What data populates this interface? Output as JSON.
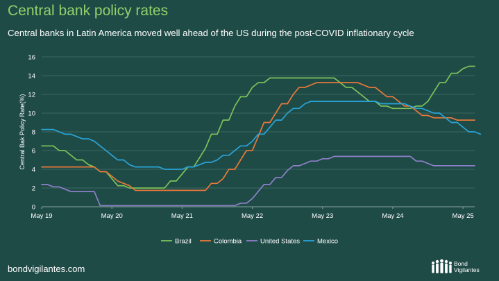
{
  "title": "Central bank policy rates",
  "subtitle": "Central banks in Latin America moved well ahead of the US during the post-COVID inflationary cycle",
  "footer": "bondvigilantes.com",
  "brand": {
    "line1": "Bond",
    "line2": "Vigilantes"
  },
  "chart_data": {
    "type": "line",
    "ylabel": "Central Bak Policy Rate(%)",
    "ylim": [
      0,
      16
    ],
    "yticks": [
      0,
      2,
      4,
      6,
      8,
      10,
      12,
      14,
      16
    ],
    "xlim": [
      "2019-05",
      "2025-07"
    ],
    "xticks": [
      "May 19",
      "May 20",
      "May 21",
      "May 22",
      "May 23",
      "May 24",
      "May 25"
    ],
    "grid": "horizontal",
    "legend": "bottom-center",
    "series": [
      {
        "name": "Brazil",
        "color": "#7cc35a",
        "points": [
          [
            "2019-05",
            6.5
          ],
          [
            "2019-06",
            6.5
          ],
          [
            "2019-07",
            6.5
          ],
          [
            "2019-08",
            6.0
          ],
          [
            "2019-09",
            6.0
          ],
          [
            "2019-10",
            5.5
          ],
          [
            "2019-11",
            5.0
          ],
          [
            "2019-12",
            5.0
          ],
          [
            "2020-01",
            4.5
          ],
          [
            "2020-02",
            4.25
          ],
          [
            "2020-03",
            3.75
          ],
          [
            "2020-04",
            3.75
          ],
          [
            "2020-05",
            3.0
          ],
          [
            "2020-06",
            2.25
          ],
          [
            "2020-07",
            2.25
          ],
          [
            "2020-08",
            2.0
          ],
          [
            "2020-12",
            2.0
          ],
          [
            "2021-01",
            2.0
          ],
          [
            "2021-02",
            2.0
          ],
          [
            "2021-03",
            2.75
          ],
          [
            "2021-04",
            2.75
          ],
          [
            "2021-05",
            3.5
          ],
          [
            "2021-06",
            4.25
          ],
          [
            "2021-07",
            4.25
          ],
          [
            "2021-08",
            5.25
          ],
          [
            "2021-09",
            6.25
          ],
          [
            "2021-10",
            7.75
          ],
          [
            "2021-11",
            7.75
          ],
          [
            "2021-12",
            9.25
          ],
          [
            "2022-01",
            9.25
          ],
          [
            "2022-02",
            10.75
          ],
          [
            "2022-03",
            11.75
          ],
          [
            "2022-04",
            11.75
          ],
          [
            "2022-05",
            12.75
          ],
          [
            "2022-06",
            13.25
          ],
          [
            "2022-07",
            13.25
          ],
          [
            "2022-08",
            13.75
          ],
          [
            "2023-07",
            13.75
          ],
          [
            "2023-08",
            13.25
          ],
          [
            "2023-09",
            12.75
          ],
          [
            "2023-10",
            12.75
          ],
          [
            "2023-11",
            12.25
          ],
          [
            "2023-12",
            11.75
          ],
          [
            "2024-01",
            11.25
          ],
          [
            "2024-02",
            11.25
          ],
          [
            "2024-03",
            10.75
          ],
          [
            "2024-04",
            10.75
          ],
          [
            "2024-05",
            10.5
          ],
          [
            "2024-08",
            10.5
          ],
          [
            "2024-09",
            10.75
          ],
          [
            "2024-10",
            10.75
          ],
          [
            "2024-11",
            11.25
          ],
          [
            "2024-12",
            12.25
          ],
          [
            "2025-01",
            13.25
          ],
          [
            "2025-02",
            13.25
          ],
          [
            "2025-03",
            14.25
          ],
          [
            "2025-04",
            14.25
          ],
          [
            "2025-05",
            14.75
          ],
          [
            "2025-06",
            15.0
          ],
          [
            "2025-07",
            15.0
          ]
        ]
      },
      {
        "name": "Colombia",
        "color": "#e8793a",
        "points": [
          [
            "2019-05",
            4.25
          ],
          [
            "2020-02",
            4.25
          ],
          [
            "2020-03",
            3.75
          ],
          [
            "2020-04",
            3.75
          ],
          [
            "2020-05",
            3.25
          ],
          [
            "2020-06",
            2.75
          ],
          [
            "2020-07",
            2.5
          ],
          [
            "2020-08",
            2.25
          ],
          [
            "2020-09",
            1.75
          ],
          [
            "2021-08",
            1.75
          ],
          [
            "2021-09",
            1.75
          ],
          [
            "2021-10",
            2.5
          ],
          [
            "2021-11",
            2.5
          ],
          [
            "2021-12",
            3.0
          ],
          [
            "2022-01",
            4.0
          ],
          [
            "2022-02",
            4.0
          ],
          [
            "2022-03",
            5.0
          ],
          [
            "2022-04",
            6.0
          ],
          [
            "2022-05",
            6.0
          ],
          [
            "2022-06",
            7.5
          ],
          [
            "2022-07",
            9.0
          ],
          [
            "2022-08",
            9.0
          ],
          [
            "2022-09",
            10.0
          ],
          [
            "2022-10",
            11.0
          ],
          [
            "2022-11",
            11.0
          ],
          [
            "2022-12",
            12.0
          ],
          [
            "2023-01",
            12.75
          ],
          [
            "2023-02",
            12.75
          ],
          [
            "2023-03",
            13.0
          ],
          [
            "2023-04",
            13.25
          ],
          [
            "2023-11",
            13.25
          ],
          [
            "2023-12",
            13.0
          ],
          [
            "2024-01",
            12.75
          ],
          [
            "2024-02",
            12.75
          ],
          [
            "2024-03",
            12.25
          ],
          [
            "2024-04",
            11.75
          ],
          [
            "2024-05",
            11.75
          ],
          [
            "2024-06",
            11.25
          ],
          [
            "2024-07",
            10.75
          ],
          [
            "2024-08",
            10.75
          ],
          [
            "2024-09",
            10.25
          ],
          [
            "2024-10",
            9.75
          ],
          [
            "2024-11",
            9.75
          ],
          [
            "2024-12",
            9.5
          ],
          [
            "2025-03",
            9.5
          ],
          [
            "2025-04",
            9.25
          ],
          [
            "2025-07",
            9.25
          ]
        ]
      },
      {
        "name": "United States",
        "color": "#8c7fc8",
        "points": [
          [
            "2019-05",
            2.375
          ],
          [
            "2019-06",
            2.375
          ],
          [
            "2019-07",
            2.125
          ],
          [
            "2019-08",
            2.125
          ],
          [
            "2019-09",
            1.875
          ],
          [
            "2019-10",
            1.625
          ],
          [
            "2020-02",
            1.625
          ],
          [
            "2020-03",
            0.125
          ],
          [
            "2022-02",
            0.125
          ],
          [
            "2022-03",
            0.375
          ],
          [
            "2022-04",
            0.375
          ],
          [
            "2022-05",
            0.875
          ],
          [
            "2022-06",
            1.625
          ],
          [
            "2022-07",
            2.375
          ],
          [
            "2022-08",
            2.375
          ],
          [
            "2022-09",
            3.125
          ],
          [
            "2022-10",
            3.125
          ],
          [
            "2022-11",
            3.875
          ],
          [
            "2022-12",
            4.375
          ],
          [
            "2023-01",
            4.375
          ],
          [
            "2023-02",
            4.625
          ],
          [
            "2023-03",
            4.875
          ],
          [
            "2023-04",
            4.875
          ],
          [
            "2023-05",
            5.125
          ],
          [
            "2023-06",
            5.125
          ],
          [
            "2023-07",
            5.375
          ],
          [
            "2024-08",
            5.375
          ],
          [
            "2024-09",
            4.875
          ],
          [
            "2024-10",
            4.875
          ],
          [
            "2024-11",
            4.625
          ],
          [
            "2024-12",
            4.375
          ],
          [
            "2025-07",
            4.375
          ]
        ]
      },
      {
        "name": "Mexico",
        "color": "#2aa4d8",
        "points": [
          [
            "2019-05",
            8.25
          ],
          [
            "2019-06",
            8.25
          ],
          [
            "2019-07",
            8.25
          ],
          [
            "2019-08",
            8.0
          ],
          [
            "2019-09",
            7.75
          ],
          [
            "2019-10",
            7.75
          ],
          [
            "2019-11",
            7.5
          ],
          [
            "2019-12",
            7.25
          ],
          [
            "2020-01",
            7.25
          ],
          [
            "2020-02",
            7.0
          ],
          [
            "2020-03",
            6.5
          ],
          [
            "2020-04",
            6.0
          ],
          [
            "2020-05",
            5.5
          ],
          [
            "2020-06",
            5.0
          ],
          [
            "2020-07",
            5.0
          ],
          [
            "2020-08",
            4.5
          ],
          [
            "2020-09",
            4.25
          ],
          [
            "2020-10",
            4.25
          ],
          [
            "2021-01",
            4.25
          ],
          [
            "2021-02",
            4.0
          ],
          [
            "2021-05",
            4.0
          ],
          [
            "2021-06",
            4.25
          ],
          [
            "2021-07",
            4.25
          ],
          [
            "2021-08",
            4.5
          ],
          [
            "2021-09",
            4.75
          ],
          [
            "2021-10",
            4.75
          ],
          [
            "2021-11",
            5.0
          ],
          [
            "2021-12",
            5.5
          ],
          [
            "2022-01",
            5.5
          ],
          [
            "2022-02",
            6.0
          ],
          [
            "2022-03",
            6.5
          ],
          [
            "2022-04",
            6.5
          ],
          [
            "2022-05",
            7.0
          ],
          [
            "2022-06",
            7.75
          ],
          [
            "2022-07",
            7.75
          ],
          [
            "2022-08",
            8.5
          ],
          [
            "2022-09",
            9.25
          ],
          [
            "2022-10",
            9.25
          ],
          [
            "2022-11",
            10.0
          ],
          [
            "2022-12",
            10.5
          ],
          [
            "2023-01",
            10.5
          ],
          [
            "2023-02",
            11.0
          ],
          [
            "2023-03",
            11.25
          ],
          [
            "2024-02",
            11.25
          ],
          [
            "2024-03",
            11.0
          ],
          [
            "2024-07",
            11.0
          ],
          [
            "2024-08",
            10.75
          ],
          [
            "2024-09",
            10.5
          ],
          [
            "2024-10",
            10.5
          ],
          [
            "2024-11",
            10.25
          ],
          [
            "2024-12",
            10.0
          ],
          [
            "2025-01",
            10.0
          ],
          [
            "2025-02",
            9.5
          ],
          [
            "2025-03",
            9.0
          ],
          [
            "2025-04",
            9.0
          ],
          [
            "2025-05",
            8.5
          ],
          [
            "2025-06",
            8.0
          ],
          [
            "2025-07",
            8.0
          ],
          [
            "2025-08",
            7.75
          ]
        ]
      }
    ]
  }
}
